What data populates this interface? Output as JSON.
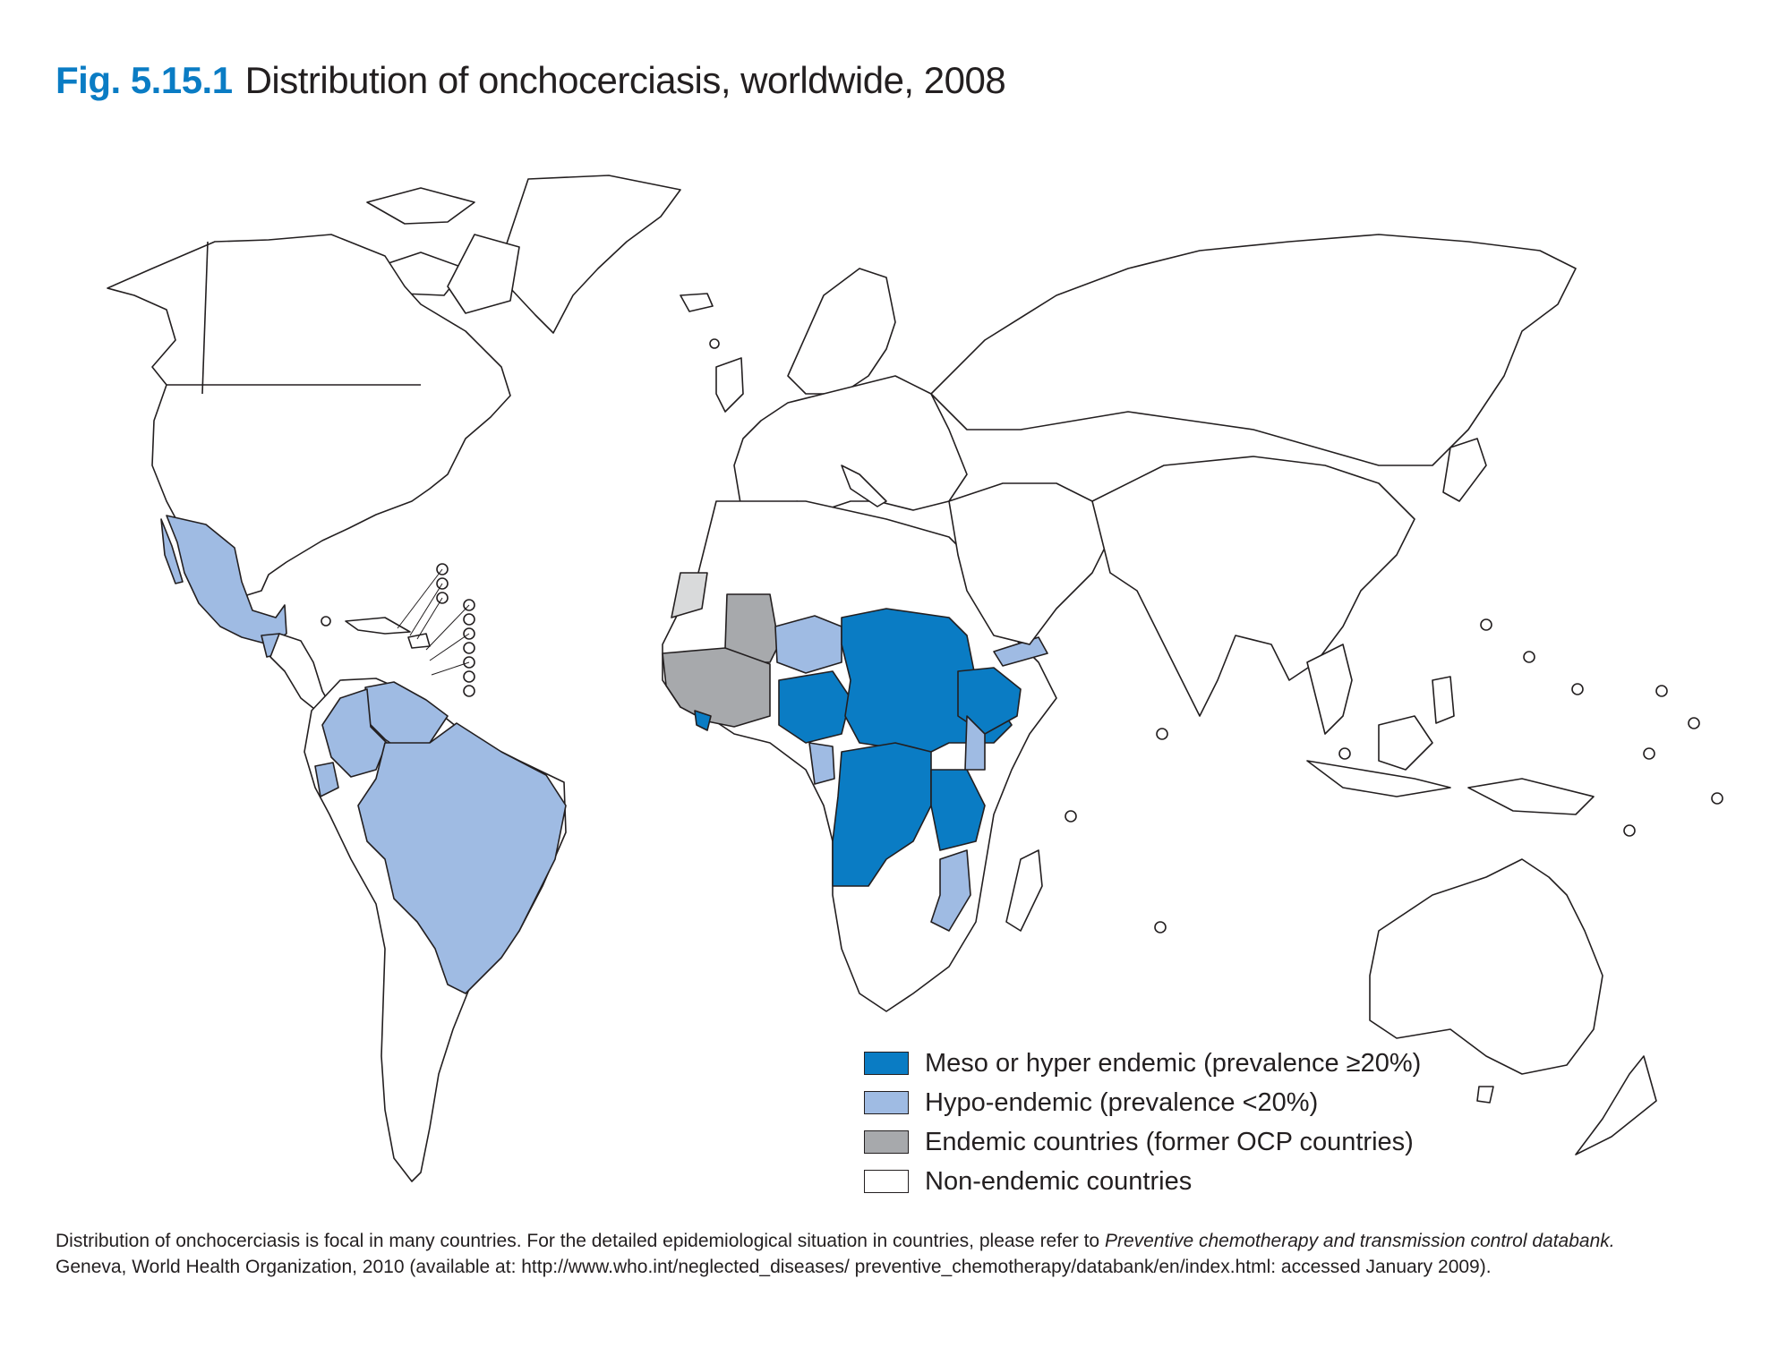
{
  "figure": {
    "number": "Fig. 5.15.1",
    "title": "Distribution of onchocerciasis, worldwide, 2008"
  },
  "colors": {
    "meso_hyper": "#0a7cc4",
    "hypo": "#9fbbe3",
    "former_ocp": "#a7a9ac",
    "former_ocp_light": "#d9dadb",
    "non_endemic": "#ffffff",
    "outline": "#231f20"
  },
  "legend": [
    {
      "label": "Meso or hyper endemic (prevalence ≥20%)",
      "color": "#0a7cc4"
    },
    {
      "label": "Hypo-endemic (prevalence <20%)",
      "color": "#9fbbe3"
    },
    {
      "label": "Endemic countries (former OCP countries)",
      "color": "#a7a9ac"
    },
    {
      "label": "Non-endemic countries",
      "color": "#ffffff"
    }
  ],
  "note": {
    "line1_text": "Distribution of onchocerciasis is focal in many countries. For the detailed epidemiological situation in countries, please refer to ",
    "line1_italic": "Preventive chemotherapy and transmission control databank.",
    "line2": "Geneva, World Health Organization, 2010 (available at: http://www.who.int/neglected_diseases/ preventive_chemotherapy/databank/en/index.html: accessed January 2009)."
  },
  "map": {
    "meso_hyper_regions": [
      "Nigeria",
      "Cameroon",
      "Chad",
      "Central African Republic",
      "Sudan",
      "Ethiopia",
      "Democratic Republic of the Congo",
      "Congo",
      "Uganda",
      "United Republic of Tanzania",
      "Liberia"
    ],
    "hypo_regions": [
      "Mexico",
      "Guatemala",
      "Venezuela",
      "Colombia",
      "Ecuador",
      "Brazil",
      "Yemen",
      "Niger",
      "Gabon",
      "Equatorial Guinea",
      "Kenya",
      "Malawi",
      "Mozambique",
      "Sierra Leone"
    ],
    "former_ocp_regions": [
      "Mali",
      "Burkina Faso",
      "Guinea",
      "Senegal",
      "Ghana",
      "Cote d'Ivoire",
      "Togo",
      "Benin",
      "Guinea-Bissau"
    ]
  }
}
